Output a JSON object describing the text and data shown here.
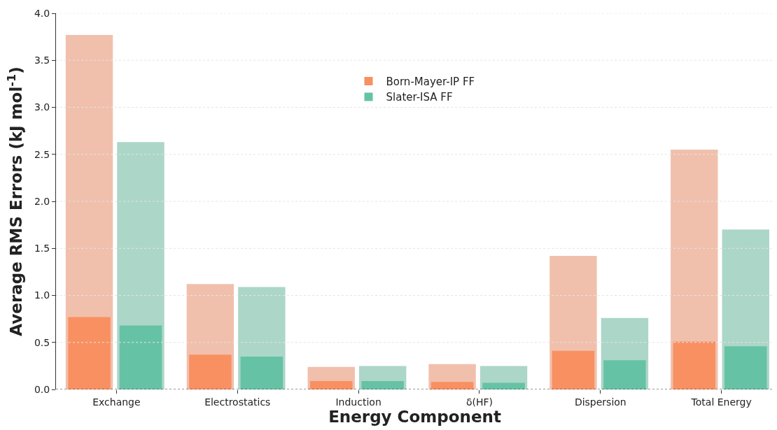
{
  "chart_data": {
    "type": "bar",
    "xlabel": "Energy Component",
    "ylabel": "Average RMS Errors (kJ mol$^{-1}$)",
    "categories": [
      "Exchange",
      "Electrostatics",
      "Induction",
      "δ(HF)",
      "Dispersion",
      "Total Energy"
    ],
    "series": [
      {
        "color": "#f0c0ac",
        "values": [
          3.77,
          1.12,
          0.24,
          0.27,
          1.42,
          2.55
        ]
      },
      {
        "color": "#acd6c8",
        "values": [
          2.63,
          1.09,
          0.25,
          0.25,
          0.76,
          1.7
        ]
      },
      {
        "name": "Born-Mayer-IP FF",
        "color": "#f99062",
        "values": [
          0.77,
          0.37,
          0.09,
          0.08,
          0.41,
          0.51
        ]
      },
      {
        "name": "Slater-ISA FF",
        "color": "#66c2a5",
        "values": [
          0.68,
          0.35,
          0.09,
          0.07,
          0.31,
          0.46
        ]
      }
    ],
    "ylim": [
      0,
      4
    ],
    "yticks": [
      {
        "value": 0,
        "label": "0.0"
      },
      {
        "value": 0.5,
        "label": "0.5"
      },
      {
        "value": 1,
        "label": "1.0"
      },
      {
        "value": 1.5,
        "label": "1.5"
      },
      {
        "value": 2,
        "label": "2.0"
      },
      {
        "value": 2.5,
        "label": "2.5"
      },
      {
        "value": 3,
        "label": "3.0"
      },
      {
        "value": 3.5,
        "label": "3.5"
      },
      {
        "value": 4,
        "label": "4.0"
      }
    ],
    "grid": "y",
    "legend": "top"
  }
}
